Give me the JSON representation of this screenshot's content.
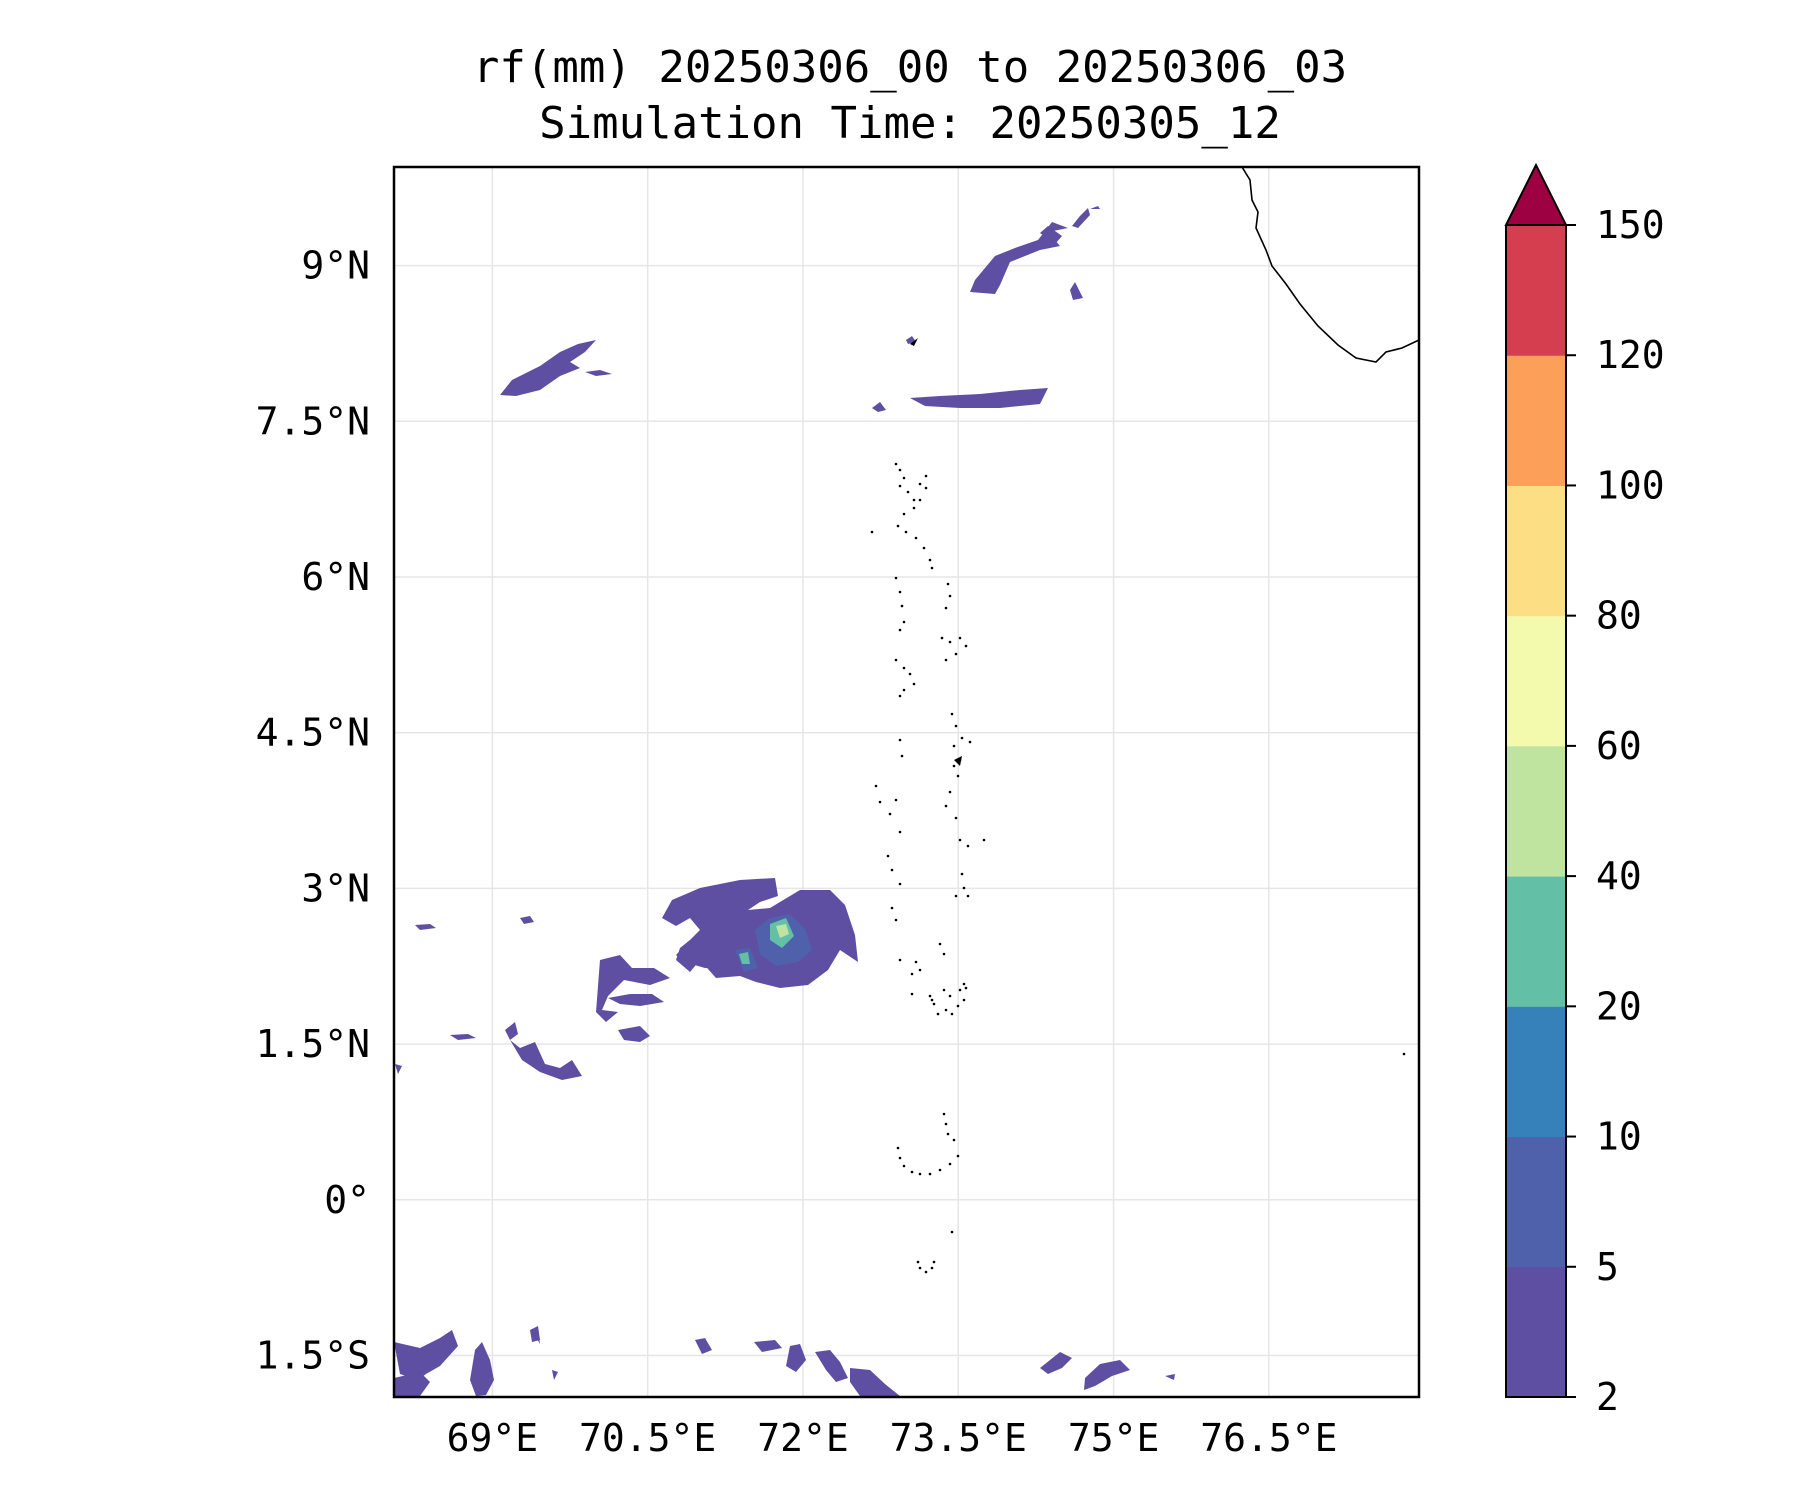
{
  "title": {
    "line1": "rf(mm) 20250306_00 to 20250306_03",
    "line2": "Simulation Time: 20250305_12"
  },
  "map": {
    "lon_range": [
      68.05,
      77.95
    ],
    "lat_range": [
      -1.9,
      9.95
    ],
    "gridlines": true,
    "xticks": [
      {
        "value": 69.0,
        "label": "69°E"
      },
      {
        "value": 70.5,
        "label": "70.5°E"
      },
      {
        "value": 72.0,
        "label": "72°E"
      },
      {
        "value": 73.5,
        "label": "73.5°E"
      },
      {
        "value": 75.0,
        "label": "75°E"
      },
      {
        "value": 76.5,
        "label": "76.5°E"
      }
    ],
    "yticks": [
      {
        "value": 9.0,
        "label": "9°N"
      },
      {
        "value": 7.5,
        "label": "7.5°N"
      },
      {
        "value": 6.0,
        "label": "6°N"
      },
      {
        "value": 4.5,
        "label": "4.5°N"
      },
      {
        "value": 3.0,
        "label": "3°N"
      },
      {
        "value": 1.5,
        "label": "1.5°N"
      },
      {
        "value": 0.0,
        "label": "0°"
      },
      {
        "value": -1.5,
        "label": "1.5°S"
      }
    ]
  },
  "colorbar": {
    "levels": [
      "2",
      "5",
      "10",
      "20",
      "40",
      "60",
      "80",
      "100",
      "120",
      "150"
    ],
    "colors": [
      "#5e4fa2",
      "#4f61aa",
      "#3681ba",
      "#63c0a6",
      "#bee4a0",
      "#f4faad",
      "#fcde84",
      "#fb9f59",
      "#d53e4f"
    ],
    "extend_color": "#9e0142",
    "extend": "max"
  },
  "colors": {
    "rain_light": "#5e4fa2",
    "rain_medium": "#4f61aa",
    "rain_high": "#63c0a6",
    "rain_peak": "#bee4a0",
    "coastline": "#000000",
    "grid": "#e6e6e6"
  }
}
